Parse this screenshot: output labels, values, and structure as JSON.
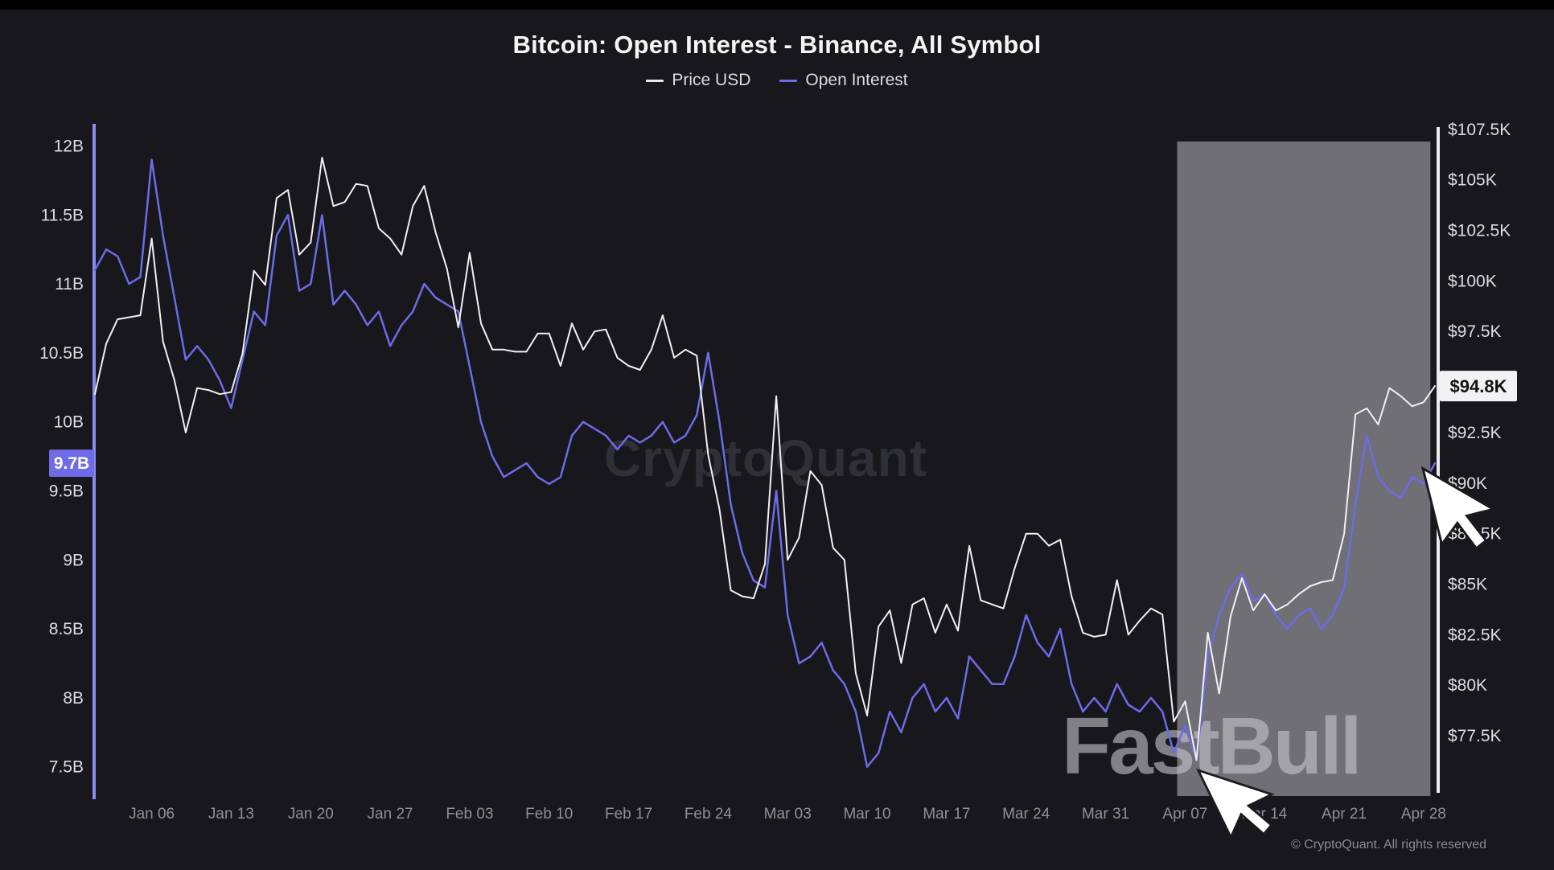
{
  "title": "Bitcoin: Open Interest - Binance, All Symbol",
  "legend": [
    {
      "label": "Price USD",
      "color": "#e8e8ee"
    },
    {
      "label": "Open Interest",
      "color": "#6f6ae6"
    }
  ],
  "watermarks": {
    "center": "CryptoQuant",
    "brand": "FastBull"
  },
  "copyright": "© CryptoQuant. All rights reserved",
  "cursors": [
    {
      "name": "pointer-near-price-axis"
    },
    {
      "name": "pointer-near-date-axis"
    }
  ],
  "colors": {
    "background": "#17171c",
    "price_line": "#f0f0f4",
    "open_interest_line": "#6f6ae6",
    "left_axis_line": "#8c8af0",
    "right_axis_line": "#ececf0"
  },
  "chart_data": {
    "type": "line",
    "title": "Bitcoin: Open Interest - Binance, All Symbol",
    "grid": false,
    "legend_position": "top-center",
    "x_unit": "date (daily)",
    "x": [
      "Jan 01",
      "Jan 02",
      "Jan 03",
      "Jan 04",
      "Jan 05",
      "Jan 06",
      "Jan 07",
      "Jan 08",
      "Jan 09",
      "Jan 10",
      "Jan 11",
      "Jan 12",
      "Jan 13",
      "Jan 14",
      "Jan 15",
      "Jan 16",
      "Jan 17",
      "Jan 18",
      "Jan 19",
      "Jan 20",
      "Jan 21",
      "Jan 22",
      "Jan 23",
      "Jan 24",
      "Jan 25",
      "Jan 26",
      "Jan 27",
      "Jan 28",
      "Jan 29",
      "Jan 30",
      "Jan 31",
      "Feb 01",
      "Feb 02",
      "Feb 03",
      "Feb 04",
      "Feb 05",
      "Feb 06",
      "Feb 07",
      "Feb 08",
      "Feb 09",
      "Feb 10",
      "Feb 11",
      "Feb 12",
      "Feb 13",
      "Feb 14",
      "Feb 15",
      "Feb 16",
      "Feb 17",
      "Feb 18",
      "Feb 19",
      "Feb 20",
      "Feb 21",
      "Feb 22",
      "Feb 23",
      "Feb 24",
      "Feb 25",
      "Feb 26",
      "Feb 27",
      "Feb 28",
      "Mar 01",
      "Mar 02",
      "Mar 03",
      "Mar 04",
      "Mar 05",
      "Mar 06",
      "Mar 07",
      "Mar 08",
      "Mar 09",
      "Mar 10",
      "Mar 11",
      "Mar 12",
      "Mar 13",
      "Mar 14",
      "Mar 15",
      "Mar 16",
      "Mar 17",
      "Mar 18",
      "Mar 19",
      "Mar 20",
      "Mar 21",
      "Mar 22",
      "Mar 23",
      "Mar 24",
      "Mar 25",
      "Mar 26",
      "Mar 27",
      "Mar 28",
      "Mar 29",
      "Mar 30",
      "Mar 31",
      "Apr 01",
      "Apr 02",
      "Apr 03",
      "Apr 04",
      "Apr 05",
      "Apr 06",
      "Apr 07",
      "Apr 08",
      "Apr 09",
      "Apr 10",
      "Apr 11",
      "Apr 12",
      "Apr 13",
      "Apr 14",
      "Apr 15",
      "Apr 16",
      "Apr 17",
      "Apr 18",
      "Apr 19",
      "Apr 20",
      "Apr 21",
      "Apr 22",
      "Apr 23",
      "Apr 24",
      "Apr 25",
      "Apr 26",
      "Apr 27",
      "Apr 28",
      "Apr 29"
    ],
    "x_ticks": [
      {
        "label": "Jan 06",
        "i": 5
      },
      {
        "label": "Jan 13",
        "i": 12
      },
      {
        "label": "Jan 20",
        "i": 19
      },
      {
        "label": "Jan 27",
        "i": 26
      },
      {
        "label": "Feb 03",
        "i": 33
      },
      {
        "label": "Feb 10",
        "i": 40
      },
      {
        "label": "Feb 17",
        "i": 47
      },
      {
        "label": "Feb 24",
        "i": 54
      },
      {
        "label": "Mar 03",
        "i": 61
      },
      {
        "label": "Mar 10",
        "i": 68
      },
      {
        "label": "Mar 17",
        "i": 75
      },
      {
        "label": "Mar 24",
        "i": 82
      },
      {
        "label": "Mar 31",
        "i": 89
      },
      {
        "label": "Apr 07",
        "i": 96
      },
      {
        "label": "Apr 14",
        "i": 103
      },
      {
        "label": "Apr 21",
        "i": 110
      },
      {
        "label": "Apr 28",
        "i": 117
      }
    ],
    "series": [
      {
        "name": "Price USD",
        "axis": "right",
        "color": "#f0f0f4",
        "width": 2,
        "unit": "USD (thousands)",
        "values": [
          94.4,
          96.9,
          98.1,
          98.2,
          98.3,
          102.1,
          97.0,
          95.1,
          92.5,
          94.7,
          94.6,
          94.4,
          94.5,
          96.4,
          100.5,
          99.8,
          104.1,
          104.5,
          101.3,
          101.9,
          106.1,
          103.7,
          103.9,
          104.8,
          104.7,
          102.6,
          102.1,
          101.3,
          103.7,
          104.7,
          102.4,
          100.6,
          97.7,
          101.4,
          97.9,
          96.6,
          96.6,
          96.5,
          96.5,
          97.4,
          97.4,
          95.8,
          97.9,
          96.6,
          97.5,
          97.6,
          96.2,
          95.8,
          95.6,
          96.6,
          98.3,
          96.2,
          96.6,
          96.3,
          91.4,
          88.7,
          84.7,
          84.4,
          84.3,
          86.0,
          94.3,
          86.2,
          87.3,
          90.6,
          89.9,
          86.8,
          86.2,
          80.6,
          78.5,
          82.9,
          83.7,
          81.1,
          84.0,
          84.3,
          82.6,
          84.0,
          82.7,
          86.9,
          84.2,
          84.0,
          83.8,
          85.8,
          87.5,
          87.5,
          86.9,
          87.2,
          84.4,
          82.6,
          82.4,
          82.5,
          85.2,
          82.5,
          83.2,
          83.8,
          83.5,
          78.2,
          79.2,
          76.3,
          82.6,
          79.6,
          83.4,
          85.3,
          83.7,
          84.5,
          83.7,
          84.0,
          84.5,
          84.9,
          85.1,
          85.2,
          87.5,
          93.4,
          93.7,
          92.9,
          94.7,
          94.3,
          93.8,
          94.0,
          94.8
        ]
      },
      {
        "name": "Open Interest",
        "axis": "left",
        "color": "#6f6ae6",
        "width": 2.5,
        "unit": "USD (billions)",
        "values": [
          11.1,
          11.25,
          11.2,
          11.0,
          11.05,
          11.9,
          11.35,
          10.9,
          10.45,
          10.55,
          10.45,
          10.3,
          10.1,
          10.45,
          10.8,
          10.7,
          11.35,
          11.5,
          10.95,
          11.0,
          11.5,
          10.85,
          10.95,
          10.85,
          10.7,
          10.8,
          10.55,
          10.7,
          10.8,
          11.0,
          10.9,
          10.85,
          10.8,
          10.4,
          10.0,
          9.75,
          9.6,
          9.65,
          9.7,
          9.6,
          9.55,
          9.6,
          9.9,
          10.0,
          9.95,
          9.9,
          9.8,
          9.9,
          9.85,
          9.9,
          10.0,
          9.85,
          9.9,
          10.05,
          10.5,
          10.0,
          9.4,
          9.05,
          8.85,
          8.8,
          9.5,
          8.6,
          8.25,
          8.3,
          8.4,
          8.2,
          8.1,
          7.9,
          7.5,
          7.6,
          7.9,
          7.75,
          8.0,
          8.1,
          7.9,
          8.0,
          7.85,
          8.3,
          8.2,
          8.1,
          8.1,
          8.3,
          8.6,
          8.4,
          8.3,
          8.5,
          8.1,
          7.9,
          8.0,
          7.9,
          8.1,
          7.95,
          7.9,
          8.0,
          7.9,
          7.6,
          7.8,
          7.55,
          8.3,
          8.6,
          8.8,
          8.9,
          8.7,
          8.75,
          8.6,
          8.5,
          8.6,
          8.65,
          8.5,
          8.6,
          8.8,
          9.4,
          9.9,
          9.6,
          9.5,
          9.45,
          9.6,
          9.55,
          9.7
        ]
      }
    ],
    "left_axis": {
      "min": 7.3,
      "max": 12.16,
      "tick_values": [
        12,
        11.5,
        11,
        10.5,
        10,
        9.5,
        9,
        8.5,
        8,
        7.5
      ],
      "tick_labels": [
        "12B",
        "11.5B",
        "11B",
        "10.5B",
        "10B",
        "9.5B",
        "9B",
        "8.5B",
        "8B",
        "7.5B"
      ]
    },
    "right_axis": {
      "min": 74.6,
      "max": 107.77,
      "tick_values": [
        107.5,
        105,
        102.5,
        100,
        97.5,
        95,
        92.5,
        90,
        87.5,
        85,
        82.5,
        80,
        77.5
      ],
      "tick_labels": [
        "$107.5K",
        "$105K",
        "$102.5K",
        "$100K",
        "$97.5K",
        "$95K",
        "$92.5K",
        "$90K",
        "$87.5K",
        "$85K",
        "$82.5K",
        "$80K",
        "$77.5K"
      ]
    },
    "current_values": {
      "open_interest": {
        "label": "9.7B",
        "value": 9.7,
        "badge_color": "#6f6ae6",
        "text_color": "#ffffff"
      },
      "price": {
        "label": "$94.8K",
        "value": 94.8,
        "badge_color": "#f2f2f4",
        "text_color": "#111115"
      }
    },
    "highlight_region": {
      "from": "Apr 07",
      "to": "Apr 28",
      "start_index": 95.3,
      "end_index": 117.6,
      "color": "rgba(175,175,182,0.58)"
    }
  }
}
